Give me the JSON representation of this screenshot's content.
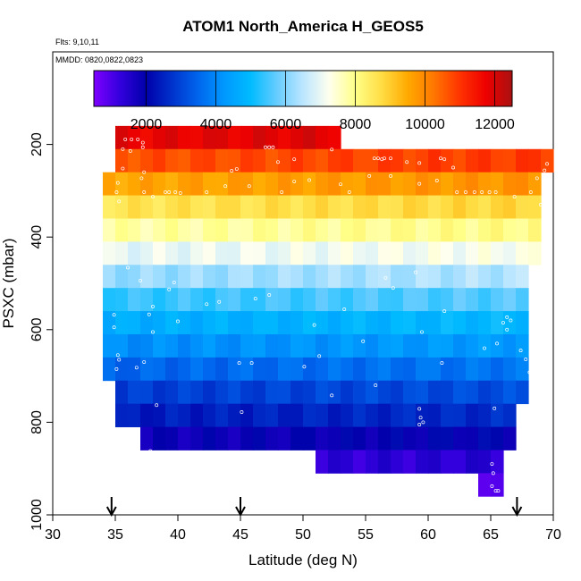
{
  "chart_data": {
    "type": "heatmap",
    "title": "ATOM1 North_America H_GEOS5",
    "annotation_flights": "Flts: 9,10,11",
    "annotation_dates": "MMDD: 0820,0822,0823",
    "xlabel": "Latitude (deg N)",
    "ylabel": "PSXC (mbar)",
    "xlim": [
      30,
      70
    ],
    "ylim": [
      1000,
      0
    ],
    "x_ticks": [
      30,
      35,
      40,
      45,
      50,
      55,
      60,
      65,
      70
    ],
    "y_ticks": [
      200,
      400,
      600,
      800,
      1000
    ],
    "colorbar": {
      "range": [
        500,
        12500
      ],
      "ticks": [
        2000,
        4000,
        6000,
        8000,
        10000,
        12000
      ],
      "colors": [
        "#7f00ff",
        "#3300dd",
        "#0000aa",
        "#0033cc",
        "#0066ee",
        "#0099ff",
        "#00bbff",
        "#66ccff",
        "#bbe6ff",
        "#ffffee",
        "#ffff88",
        "#ffdd44",
        "#ffaa00",
        "#ff7700",
        "#ff3300",
        "#ee0000",
        "#aa1111"
      ]
    },
    "arrow_latitudes": [
      34.7,
      45.0,
      67.1
    ],
    "rows": [
      {
        "p_top": 160,
        "p_bot": 210,
        "lat_start": 35,
        "lat_end": 53,
        "value": 11900
      },
      {
        "p_top": 210,
        "p_bot": 260,
        "lat_start": 35,
        "lat_end": 70,
        "value": 10800
      },
      {
        "p_top": 260,
        "p_bot": 310,
        "lat_start": 34,
        "lat_end": 69,
        "value": 9700
      },
      {
        "p_top": 310,
        "p_bot": 360,
        "lat_start": 34,
        "lat_end": 69,
        "value": 8700
      },
      {
        "p_top": 360,
        "p_bot": 410,
        "lat_start": 34,
        "lat_end": 69,
        "value": 7900
      },
      {
        "p_top": 410,
        "p_bot": 460,
        "lat_start": 34,
        "lat_end": 69,
        "value": 7100
      },
      {
        "p_top": 460,
        "p_bot": 510,
        "lat_start": 34,
        "lat_end": 68,
        "value": 6300
      },
      {
        "p_top": 510,
        "p_bot": 560,
        "lat_start": 34,
        "lat_end": 68,
        "value": 5500
      },
      {
        "p_top": 560,
        "p_bot": 610,
        "lat_start": 34,
        "lat_end": 68,
        "value": 4800
      },
      {
        "p_top": 610,
        "p_bot": 660,
        "lat_start": 34,
        "lat_end": 68,
        "value": 4200
      },
      {
        "p_top": 660,
        "p_bot": 710,
        "lat_start": 34,
        "lat_end": 68,
        "value": 3600
      },
      {
        "p_top": 710,
        "p_bot": 760,
        "lat_start": 35,
        "lat_end": 68,
        "value": 3000
      },
      {
        "p_top": 760,
        "p_bot": 810,
        "lat_start": 35,
        "lat_end": 67,
        "value": 2500
      },
      {
        "p_top": 810,
        "p_bot": 860,
        "lat_start": 37,
        "lat_end": 67,
        "value": 1900
      },
      {
        "p_top": 860,
        "p_bot": 910,
        "lat_start": 51,
        "lat_end": 66,
        "value": 1300
      },
      {
        "p_top": 910,
        "p_bot": 960,
        "lat_start": 64,
        "lat_end": 66,
        "value": 900
      }
    ],
    "points": [
      [
        35.8,
        189
      ],
      [
        36.3,
        189
      ],
      [
        36.8,
        189
      ],
      [
        37.2,
        196
      ],
      [
        37.2,
        206
      ],
      [
        35.6,
        210
      ],
      [
        36.2,
        214
      ],
      [
        44.7,
        253
      ],
      [
        44.3,
        257
      ],
      [
        47.0,
        206
      ],
      [
        47.3,
        206
      ],
      [
        47.6,
        206
      ],
      [
        48.0,
        238
      ],
      [
        49.3,
        232
      ],
      [
        52.3,
        211
      ],
      [
        55.7,
        230
      ],
      [
        56.0,
        230
      ],
      [
        56.5,
        230
      ],
      [
        56.3,
        232
      ],
      [
        57.0,
        230
      ],
      [
        58.3,
        238
      ],
      [
        59.3,
        240
      ],
      [
        61.0,
        230
      ],
      [
        61.3,
        232
      ],
      [
        62.0,
        250
      ],
      [
        69.5,
        242
      ],
      [
        69.3,
        256
      ],
      [
        35.6,
        252
      ],
      [
        37.3,
        260
      ],
      [
        37.1,
        273
      ],
      [
        35.2,
        283
      ],
      [
        35.1,
        303
      ],
      [
        35.3,
        323
      ],
      [
        39.0,
        303
      ],
      [
        39.3,
        303
      ],
      [
        39.8,
        303
      ],
      [
        40.2,
        305
      ],
      [
        37.3,
        303
      ],
      [
        38.0,
        313
      ],
      [
        42.3,
        303
      ],
      [
        43.8,
        290
      ],
      [
        45.7,
        290
      ],
      [
        48.3,
        303
      ],
      [
        49.3,
        280
      ],
      [
        50.5,
        277
      ],
      [
        53.0,
        286
      ],
      [
        53.7,
        303
      ],
      [
        55.3,
        268
      ],
      [
        57.0,
        268
      ],
      [
        59.3,
        285
      ],
      [
        60.7,
        278
      ],
      [
        62.3,
        303
      ],
      [
        63.0,
        303
      ],
      [
        63.7,
        303
      ],
      [
        64.3,
        303
      ],
      [
        64.9,
        303
      ],
      [
        65.4,
        303
      ],
      [
        66.9,
        313
      ],
      [
        68.2,
        303
      ],
      [
        68.7,
        273
      ],
      [
        69.0,
        330
      ],
      [
        69.3,
        340
      ],
      [
        69.6,
        353
      ],
      [
        36.0,
        466
      ],
      [
        37.0,
        494
      ],
      [
        39.3,
        513
      ],
      [
        39.7,
        498
      ],
      [
        38.0,
        550
      ],
      [
        37.7,
        567
      ],
      [
        43.3,
        540
      ],
      [
        46.2,
        533
      ],
      [
        47.3,
        525
      ],
      [
        50.9,
        590
      ],
      [
        53.3,
        556
      ],
      [
        56.6,
        488
      ],
      [
        57.2,
        510
      ],
      [
        59.0,
        476
      ],
      [
        61.3,
        560
      ],
      [
        66.0,
        585
      ],
      [
        66.6,
        580
      ],
      [
        66.3,
        573
      ],
      [
        34.9,
        568
      ],
      [
        34.9,
        595
      ],
      [
        35.2,
        655
      ],
      [
        35.3,
        665
      ],
      [
        35.1,
        685
      ],
      [
        37.3,
        670
      ],
      [
        36.7,
        682
      ],
      [
        38.0,
        605
      ],
      [
        40.0,
        582
      ],
      [
        42.3,
        545
      ],
      [
        44.9,
        672
      ],
      [
        45.9,
        672
      ],
      [
        50.1,
        680
      ],
      [
        51.3,
        657
      ],
      [
        54.8,
        625
      ],
      [
        59.5,
        605
      ],
      [
        61.1,
        672
      ],
      [
        64.5,
        640
      ],
      [
        65.5,
        630
      ],
      [
        66.3,
        600
      ],
      [
        67.4,
        645
      ],
      [
        67.8,
        664
      ],
      [
        68.1,
        692
      ],
      [
        38.3,
        763
      ],
      [
        45.1,
        778
      ],
      [
        52.3,
        742
      ],
      [
        55.8,
        720
      ],
      [
        59.3,
        771
      ],
      [
        59.4,
        790
      ],
      [
        59.6,
        800
      ],
      [
        59.3,
        805
      ],
      [
        65.3,
        770
      ],
      [
        37.8,
        862
      ],
      [
        65.1,
        890
      ],
      [
        65.2,
        910
      ],
      [
        65.1,
        938
      ],
      [
        65.6,
        948
      ],
      [
        65.4,
        948
      ]
    ]
  }
}
